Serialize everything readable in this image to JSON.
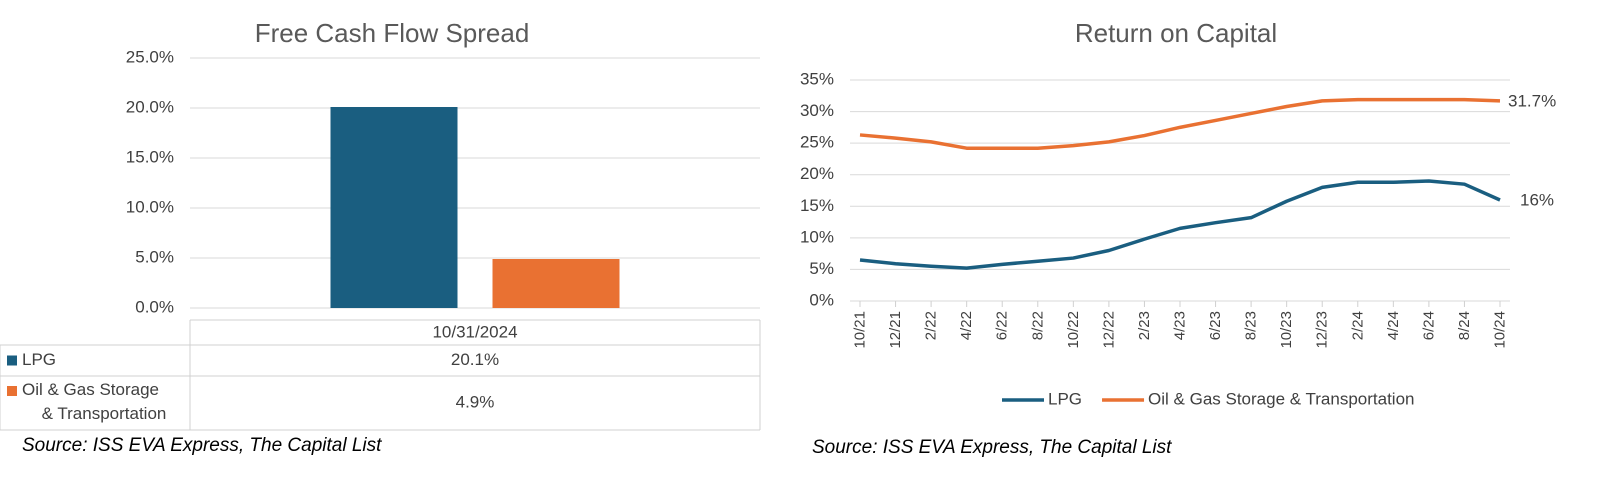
{
  "chart_data": [
    {
      "type": "bar",
      "title": "Free Cash Flow Spread",
      "categories": [
        "10/31/2024"
      ],
      "series": [
        {
          "name": "LPG",
          "color": "#1a5e80",
          "values": [
            20.1
          ],
          "value_labels": [
            "20.1%"
          ]
        },
        {
          "name": "Oil & Gas Storage & Transportation",
          "color": "#e97132",
          "values": [
            4.9
          ],
          "value_labels": [
            "4.9%"
          ]
        }
      ],
      "ylim": [
        0,
        25
      ],
      "yticks": [
        {
          "value": 0,
          "label": "0.0%"
        },
        {
          "value": 5,
          "label": "5.0%"
        },
        {
          "value": 10,
          "label": "10.0%"
        },
        {
          "value": 15,
          "label": "15.0%"
        },
        {
          "value": 20,
          "label": "20.0%"
        },
        {
          "value": 25,
          "label": "25.0%"
        }
      ],
      "grid": true,
      "source": "Source: ISS EVA Express, The Capital List"
    },
    {
      "type": "line",
      "title": "Return on Capital",
      "categories": [
        "10/21",
        "12/21",
        "2/22",
        "4/22",
        "6/22",
        "8/22",
        "10/22",
        "12/22",
        "2/23",
        "4/23",
        "6/23",
        "8/23",
        "10/23",
        "12/23",
        "2/24",
        "4/24",
        "6/24",
        "8/24",
        "10/24"
      ],
      "series": [
        {
          "name": "LPG",
          "color": "#1a5e80",
          "values": [
            6.5,
            5.9,
            5.5,
            5.2,
            5.8,
            6.3,
            6.8,
            8.0,
            9.8,
            11.5,
            12.4,
            13.2,
            15.8,
            18.0,
            18.8,
            18.8,
            19.0,
            18.5,
            16
          ],
          "value_labels": [
            null,
            null,
            null,
            null,
            null,
            null,
            null,
            null,
            null,
            null,
            null,
            null,
            null,
            null,
            null,
            null,
            null,
            null,
            "16%"
          ]
        },
        {
          "name": "Oil & Gas Storage & Transportation",
          "color": "#e97132",
          "values": [
            26.3,
            25.8,
            25.2,
            24.2,
            24.2,
            24.2,
            24.6,
            25.2,
            26.2,
            27.5,
            28.6,
            29.7,
            30.8,
            31.7,
            31.9,
            31.9,
            31.9,
            31.9,
            31.7
          ],
          "value_labels": [
            null,
            null,
            null,
            null,
            null,
            null,
            null,
            null,
            null,
            null,
            null,
            null,
            null,
            null,
            null,
            null,
            null,
            null,
            "31.7%"
          ]
        }
      ],
      "ylim": [
        0,
        35
      ],
      "yticks": [
        {
          "value": 0,
          "label": "0%"
        },
        {
          "value": 5,
          "label": "5%"
        },
        {
          "value": 10,
          "label": "10%"
        },
        {
          "value": 15,
          "label": "15%"
        },
        {
          "value": 20,
          "label": "20%"
        },
        {
          "value": 25,
          "label": "25%"
        },
        {
          "value": 30,
          "label": "30%"
        },
        {
          "value": 35,
          "label": "35%"
        }
      ],
      "grid": true,
      "source": "Source: ISS EVA Express, The Capital List"
    }
  ]
}
